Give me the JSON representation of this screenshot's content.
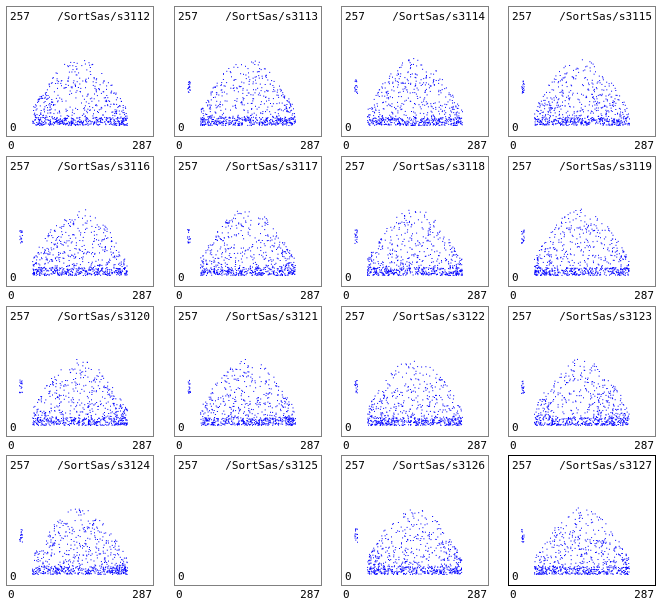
{
  "chart_data": {
    "type": "scatter",
    "x_axis": {
      "min_label": "0",
      "max_label": "287",
      "range": [
        0,
        287
      ]
    },
    "y_axis": {
      "min_label": "0",
      "max_label": "257",
      "range": [
        0,
        257
      ]
    },
    "point_color": "#0000ff",
    "selected_panel_border": "#000000",
    "panel_border": "#808080",
    "panels": [
      {
        "title": "/SortSas/s3112",
        "side_cluster": false,
        "empty": false
      },
      {
        "title": "/SortSas/s3113",
        "side_cluster": true,
        "empty": false
      },
      {
        "title": "/SortSas/s3114",
        "side_cluster": true,
        "empty": false
      },
      {
        "title": "/SortSas/s3115",
        "side_cluster": true,
        "empty": false
      },
      {
        "title": "/SortSas/s3116",
        "side_cluster": true,
        "empty": false
      },
      {
        "title": "/SortSas/s3117",
        "side_cluster": true,
        "empty": false
      },
      {
        "title": "/SortSas/s3118",
        "side_cluster": true,
        "empty": false
      },
      {
        "title": "/SortSas/s3119",
        "side_cluster": true,
        "empty": false
      },
      {
        "title": "/SortSas/s3120",
        "side_cluster": true,
        "empty": false
      },
      {
        "title": "/SortSas/s3121",
        "side_cluster": true,
        "empty": false
      },
      {
        "title": "/SortSas/s3122",
        "side_cluster": true,
        "empty": false
      },
      {
        "title": "/SortSas/s3123",
        "side_cluster": true,
        "empty": false
      },
      {
        "title": "/SortSas/s3124",
        "side_cluster": true,
        "empty": false
      },
      {
        "title": "/SortSas/s3125",
        "side_cluster": false,
        "empty": true
      },
      {
        "title": "/SortSas/s3126",
        "side_cluster": true,
        "empty": false
      },
      {
        "title": "/SortSas/s3127",
        "side_cluster": true,
        "empty": false,
        "selected": true
      }
    ]
  }
}
